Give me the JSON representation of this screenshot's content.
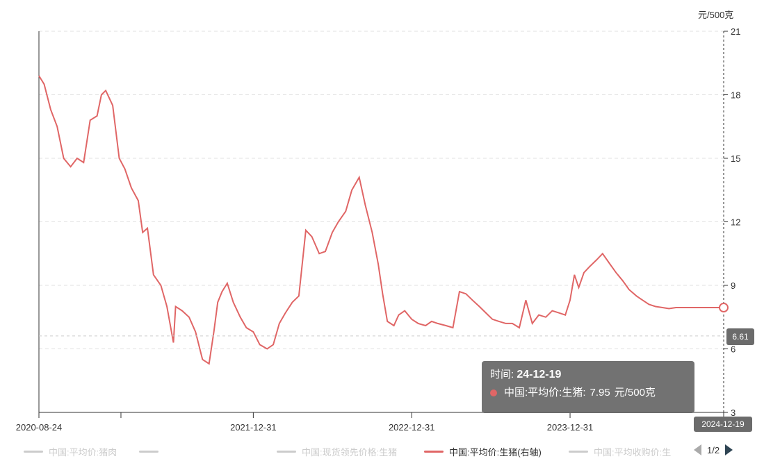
{
  "chart_data": {
    "type": "line",
    "title": "",
    "xlabel": "",
    "ylabel": "元/500克",
    "x_ticks": [
      "2020-08-24",
      "2021-12-31",
      "2022-12-31",
      "2023-12-31",
      "2024-12-19"
    ],
    "y_ticks": [
      "3",
      "6",
      "9",
      "12",
      "15",
      "18",
      "21"
    ],
    "ylim": [
      3,
      21
    ],
    "xlim": [
      "2020-08-24",
      "2024-12-19"
    ],
    "y_axis_position": "right",
    "grid": "horizontal dashed",
    "series": [
      {
        "name": "中国:平均价:生猪(右轴)",
        "color": "#e06666",
        "x": [
          "2020-08-24",
          "2020-09-05",
          "2020-09-20",
          "2020-10-05",
          "2020-10-20",
          "2020-11-05",
          "2020-11-20",
          "2020-12-05",
          "2020-12-20",
          "2021-01-05",
          "2021-01-15",
          "2021-01-25",
          "2021-02-10",
          "2021-02-25",
          "2021-03-10",
          "2021-03-25",
          "2021-04-10",
          "2021-04-20",
          "2021-05-01",
          "2021-05-15",
          "2021-06-01",
          "2021-06-15",
          "2021-06-30",
          "2021-07-05",
          "2021-07-20",
          "2021-08-05",
          "2021-08-20",
          "2021-09-05",
          "2021-09-20",
          "2021-10-01",
          "2021-10-10",
          "2021-10-20",
          "2021-11-01",
          "2021-11-15",
          "2021-12-01",
          "2021-12-15",
          "2021-12-31",
          "2022-01-15",
          "2022-02-01",
          "2022-02-15",
          "2022-03-01",
          "2022-03-15",
          "2022-03-31",
          "2022-04-15",
          "2022-05-01",
          "2022-05-15",
          "2022-06-01",
          "2022-06-15",
          "2022-07-01",
          "2022-07-15",
          "2022-08-01",
          "2022-08-15",
          "2022-09-01",
          "2022-09-15",
          "2022-10-01",
          "2022-10-15",
          "2022-10-25",
          "2022-11-05",
          "2022-11-20",
          "2022-12-01",
          "2022-12-15",
          "2022-12-31",
          "2023-01-15",
          "2023-02-01",
          "2023-02-15",
          "2023-03-01",
          "2023-03-20",
          "2023-04-05",
          "2023-04-20",
          "2023-05-05",
          "2023-05-20",
          "2023-06-05",
          "2023-06-20",
          "2023-07-05",
          "2023-07-20",
          "2023-08-05",
          "2023-08-20",
          "2023-09-05",
          "2023-09-20",
          "2023-10-05",
          "2023-10-20",
          "2023-11-05",
          "2023-11-20",
          "2023-12-05",
          "2023-12-20",
          "2023-12-31",
          "2024-01-10",
          "2024-01-20",
          "2024-02-01",
          "2024-02-15",
          "2024-03-01",
          "2024-03-15",
          "2024-04-01",
          "2024-04-15",
          "2024-05-01",
          "2024-05-15",
          "2024-06-01",
          "2024-06-15",
          "2024-06-30",
          "2024-07-15",
          "2024-07-31",
          "2024-08-15",
          "2024-08-31",
          "2024-09-15",
          "2024-09-30",
          "2024-10-15",
          "2024-10-31",
          "2024-11-15",
          "2024-11-30",
          "2024-12-10",
          "2024-12-19"
        ],
        "values": [
          18.9,
          18.5,
          17.3,
          16.5,
          15.0,
          14.6,
          15.0,
          14.8,
          16.8,
          17.0,
          18.0,
          18.2,
          17.5,
          15.0,
          14.5,
          13.6,
          13.0,
          11.5,
          11.7,
          9.5,
          9.0,
          8.0,
          6.3,
          8.0,
          7.8,
          7.5,
          6.8,
          5.5,
          5.3,
          6.8,
          8.2,
          8.7,
          9.1,
          8.2,
          7.5,
          7.0,
          6.8,
          6.2,
          6.0,
          6.2,
          7.2,
          7.7,
          8.2,
          8.5,
          11.6,
          11.3,
          10.5,
          10.6,
          11.5,
          12.0,
          12.5,
          13.5,
          14.1,
          12.8,
          11.5,
          10.0,
          8.6,
          7.3,
          7.1,
          7.6,
          7.8,
          7.4,
          7.2,
          7.1,
          7.3,
          7.2,
          7.1,
          7.0,
          8.7,
          8.6,
          8.3,
          8.0,
          7.7,
          7.4,
          7.3,
          7.2,
          7.2,
          7.0,
          8.3,
          7.2,
          7.6,
          7.5,
          7.8,
          7.7,
          7.6,
          8.3,
          9.5,
          8.9,
          9.6,
          9.9,
          10.2,
          10.5,
          10.0,
          9.6,
          9.2,
          8.8,
          8.5,
          8.3,
          8.1,
          8.0,
          7.95,
          7.9,
          7.95,
          7.95,
          7.95,
          7.95,
          7.95,
          7.95,
          7.95,
          7.95,
          7.95
        ]
      }
    ],
    "markers": {
      "horizontal_line_value": "6.61"
    }
  },
  "axis_unit": "元/500克",
  "tooltip": {
    "time_label": "时间:",
    "time_value": "24-12-19",
    "series_label": "中国:平均价:生猪:",
    "value": "7.95",
    "unit": "元/500克"
  },
  "mark_label": "6.61",
  "x_pointer_label": "2024-12-19",
  "legend": {
    "items": [
      {
        "label": "中国:平均价:猪肉",
        "active": false
      },
      {
        "label": "",
        "active": false
      },
      {
        "label": "中国:现货领先价格:生猪",
        "active": false
      },
      {
        "label": "中国:平均价:生猪(右轴)",
        "active": true
      },
      {
        "label": "中国:平均收购价:生",
        "active": false
      }
    ],
    "page": "1/2"
  }
}
